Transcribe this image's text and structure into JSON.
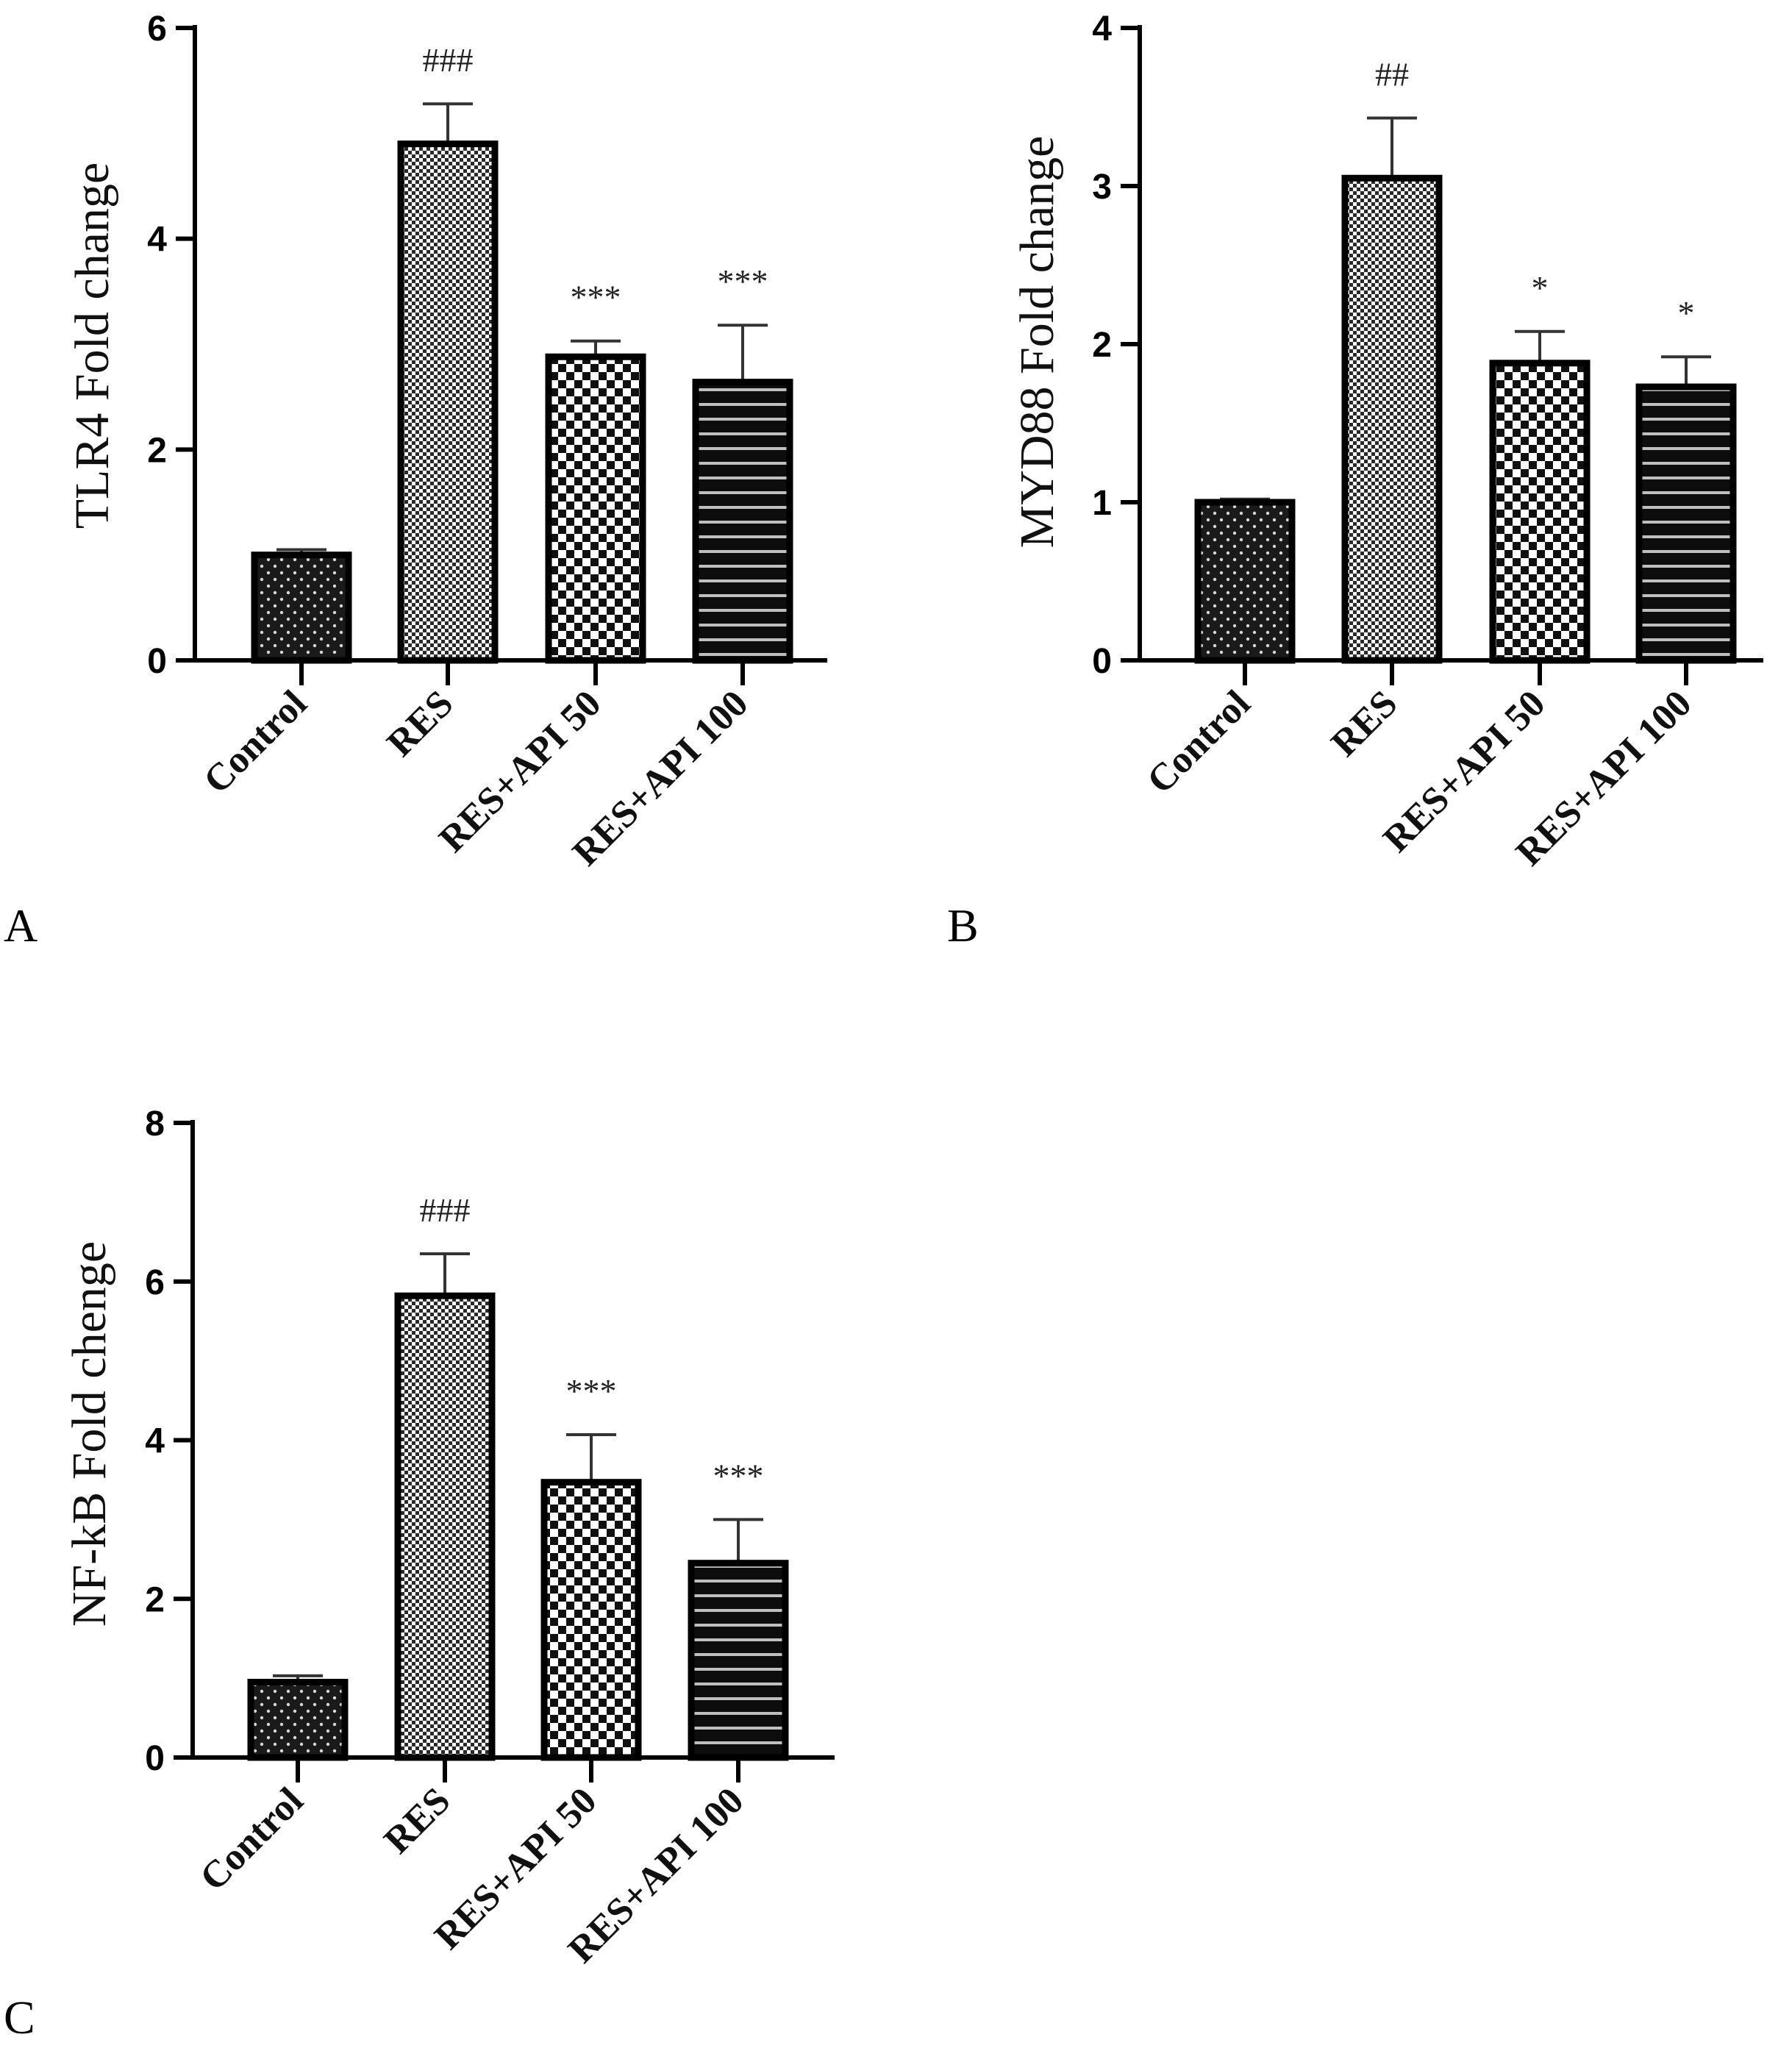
{
  "chart_data": [
    {
      "panel": "A",
      "type": "bar",
      "categories": [
        "Control",
        "RES",
        "RES+API 50",
        "RES+API 100"
      ],
      "values": [
        1.0,
        4.9,
        2.88,
        2.64
      ],
      "errors": [
        0.05,
        0.38,
        0.15,
        0.54
      ],
      "annotations": [
        "",
        "###",
        "***",
        "***"
      ],
      "ylabel": "TLR4 Fold change",
      "ylim": [
        0,
        6
      ],
      "yticks": [
        0,
        2,
        4,
        6
      ],
      "grid": false
    },
    {
      "panel": "B",
      "type": "bar",
      "categories": [
        "Control",
        "RES",
        "RES+API 50",
        "RES+API 100"
      ],
      "values": [
        1.0,
        3.05,
        1.88,
        1.73
      ],
      "errors": [
        0.02,
        0.38,
        0.2,
        0.19
      ],
      "annotations": [
        "",
        "##",
        "*",
        "*"
      ],
      "ylabel": "MYD88 Fold change",
      "ylim": [
        0,
        4
      ],
      "yticks": [
        0,
        1,
        2,
        3,
        4
      ],
      "grid": false
    },
    {
      "panel": "C",
      "type": "bar",
      "categories": [
        "Control",
        "RES",
        "RES+API 50",
        "RES+API 100"
      ],
      "values": [
        0.95,
        5.82,
        3.47,
        2.45
      ],
      "errors": [
        0.08,
        0.53,
        0.6,
        0.55
      ],
      "annotations": [
        "",
        "###",
        "***",
        "***"
      ],
      "ylabel": "NF-kB Fold chenge",
      "ylim": [
        0,
        8
      ],
      "yticks": [
        0,
        2,
        4,
        6,
        8
      ],
      "grid": false
    }
  ]
}
